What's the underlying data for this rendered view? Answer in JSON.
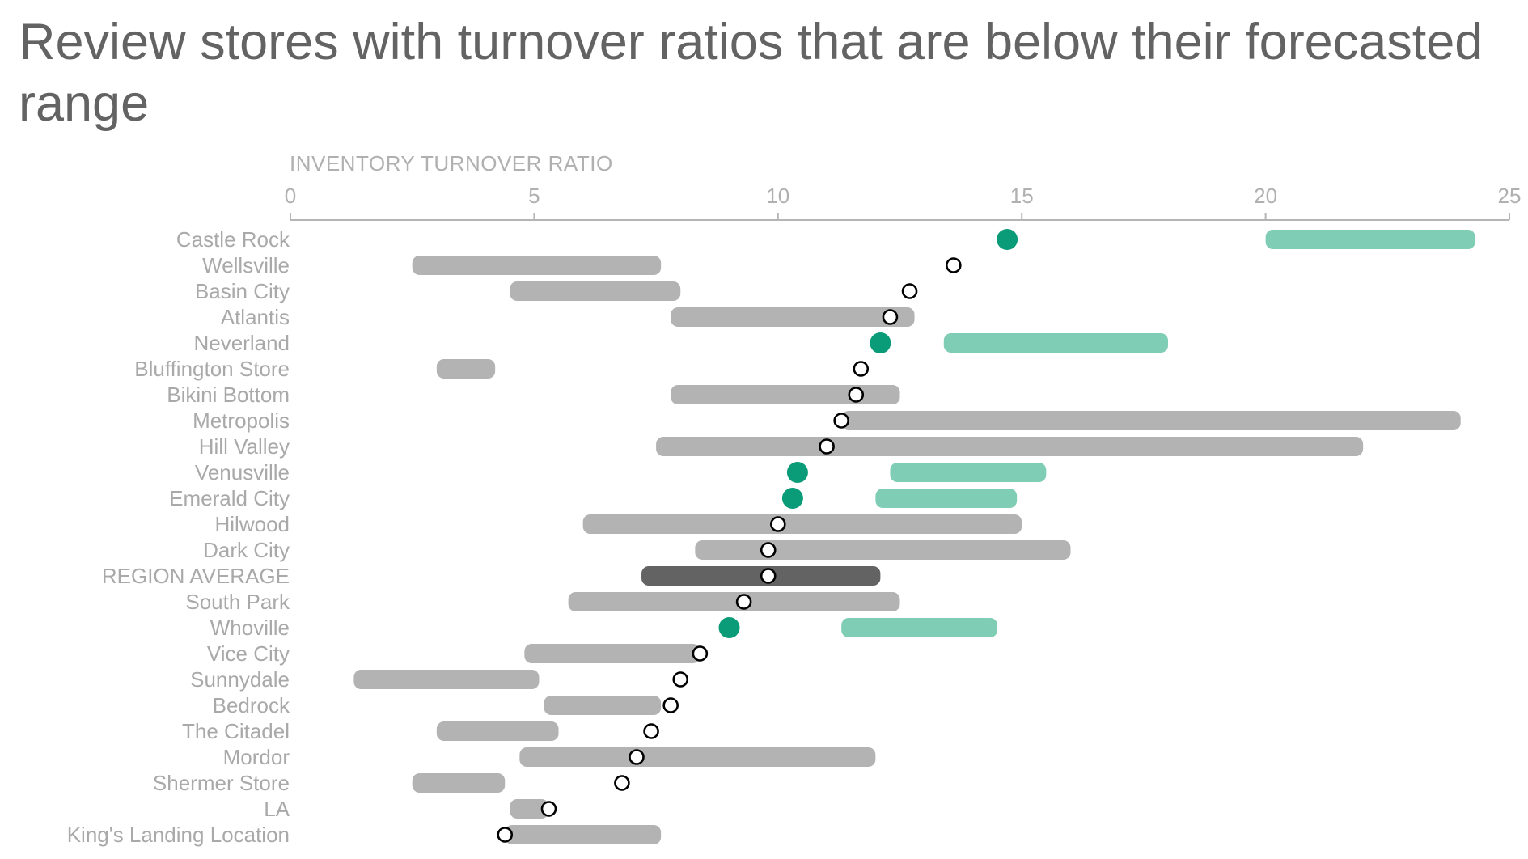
{
  "chart_data": {
    "type": "dot-range",
    "title": "Review stores with turnover ratios that are below their forecasted range",
    "xlabel": "INVENTORY TURNOVER RATIO",
    "xlim": [
      0,
      25
    ],
    "xticks": [
      0,
      5,
      10,
      15,
      20,
      25
    ],
    "legend": "none",
    "grid": false,
    "colors": {
      "range": "#b3b3b3",
      "range_below": "#7fcdb4",
      "range_average": "#636363",
      "dot_below": "#0a9b78",
      "dot_normal_fill": "#ffffff",
      "dot_normal_stroke": "#000000"
    },
    "categories": [
      "Castle Rock",
      "Wellsville",
      "Basin City",
      "Atlantis",
      "Neverland",
      "Bluffington Store",
      "Bikini Bottom",
      "Metropolis",
      "Hill Valley",
      "Venusville",
      "Emerald City",
      "Hilwood",
      "Dark City",
      "REGION AVERAGE",
      "South Park",
      "Whoville",
      "Vice City",
      "Sunnydale",
      "Bedrock",
      "The Citadel",
      "Mordor",
      "Shermer Store",
      "LA",
      "King's Landing Location"
    ],
    "ratio": [
      14.7,
      13.6,
      12.7,
      12.3,
      12.1,
      11.7,
      11.6,
      11.3,
      11.0,
      10.4,
      10.3,
      10.0,
      9.8,
      9.8,
      9.3,
      9.0,
      8.4,
      8.0,
      7.8,
      7.4,
      7.1,
      6.8,
      5.3,
      4.4
    ],
    "range_low": [
      20.0,
      2.5,
      4.5,
      7.8,
      13.4,
      3.0,
      7.8,
      11.3,
      7.5,
      12.3,
      12.0,
      6.0,
      8.3,
      7.2,
      5.7,
      11.3,
      4.8,
      1.3,
      5.2,
      3.0,
      4.7,
      2.5,
      4.5,
      4.4
    ],
    "range_high": [
      24.3,
      7.6,
      8.0,
      12.8,
      18.0,
      4.2,
      12.5,
      24.0,
      22.0,
      15.5,
      14.9,
      15.0,
      16.0,
      12.1,
      12.5,
      14.5,
      8.4,
      5.1,
      7.6,
      5.5,
      12.0,
      4.4,
      5.3,
      7.6
    ],
    "below_range": [
      true,
      false,
      false,
      false,
      true,
      false,
      false,
      false,
      false,
      true,
      true,
      false,
      false,
      false,
      false,
      true,
      false,
      false,
      false,
      false,
      false,
      false,
      false,
      false
    ],
    "is_average": [
      false,
      false,
      false,
      false,
      false,
      false,
      false,
      false,
      false,
      false,
      false,
      false,
      false,
      true,
      false,
      false,
      false,
      false,
      false,
      false,
      false,
      false,
      false,
      false
    ]
  }
}
